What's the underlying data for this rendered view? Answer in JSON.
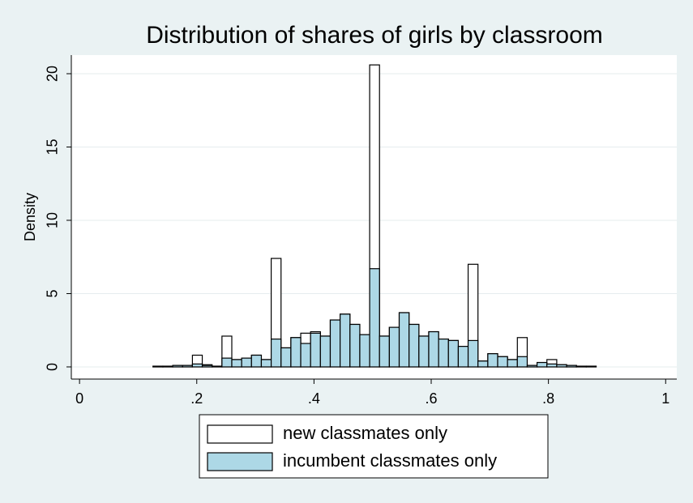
{
  "chart_data": {
    "type": "histogram",
    "title": "Distribution of shares of girls by classroom",
    "y_label": "Density",
    "bins": [
      0.075,
      0.0918,
      0.1086,
      0.1254,
      0.1422,
      0.159,
      0.1758,
      0.1926,
      0.2094,
      0.2262,
      0.243,
      0.2598,
      0.2766,
      0.2934,
      0.3102,
      0.327,
      0.3438,
      0.3606,
      0.3774,
      0.3942,
      0.411,
      0.4278,
      0.4446,
      0.4614,
      0.4782,
      0.495,
      0.5118,
      0.5286,
      0.5454,
      0.5622,
      0.579,
      0.5958,
      0.6126,
      0.6294,
      0.6462,
      0.663,
      0.6798,
      0.6966,
      0.7134,
      0.7302,
      0.747,
      0.7638,
      0.7806,
      0.7974,
      0.8142,
      0.831,
      0.8478,
      0.8646,
      0.8814,
      0.8982,
      0.915
    ],
    "series": [
      {
        "name": "new classmates only",
        "color": "#ffffff",
        "values": [
          0,
          0,
          0,
          0.05,
          0.05,
          0.1,
          0.1,
          0.8,
          0.15,
          0.05,
          2.1,
          0.5,
          0.6,
          0.8,
          0.5,
          7.4,
          1.3,
          2.0,
          2.3,
          2.4,
          2.1,
          3.2,
          3.6,
          2.9,
          2.2,
          20.6,
          2.1,
          2.7,
          3.7,
          2.9,
          2.1,
          2.4,
          1.9,
          1.8,
          1.4,
          7.0,
          0.4,
          0.9,
          0.7,
          0.5,
          2.0,
          0.1,
          0.3,
          0.5,
          0.15,
          0.1,
          0.05,
          0.05,
          0,
          0
        ]
      },
      {
        "name": "incumbent classmates only",
        "color": "#add8e6",
        "values": [
          0,
          0,
          0,
          0.05,
          0.05,
          0.1,
          0.1,
          0.2,
          0.1,
          0.05,
          0.6,
          0.5,
          0.6,
          0.8,
          0.5,
          1.9,
          1.3,
          2.0,
          1.6,
          2.3,
          2.1,
          3.2,
          3.6,
          2.9,
          2.2,
          6.7,
          2.1,
          2.7,
          3.7,
          2.9,
          2.1,
          2.4,
          1.9,
          1.8,
          1.4,
          1.8,
          0.4,
          0.9,
          0.7,
          0.5,
          0.7,
          0.1,
          0.3,
          0.2,
          0.15,
          0.1,
          0.05,
          0.05,
          0,
          0
        ]
      }
    ],
    "xlim": [
      -0.014,
      1.019
    ],
    "xticks": [
      0,
      {
        "value": 0.2,
        "label": ".2"
      },
      {
        "value": 0.4,
        "label": ".4"
      },
      {
        "value": 0.6,
        "label": ".6"
      },
      {
        "value": 0.8,
        "label": ".8"
      },
      1
    ],
    "ylim": [
      -0.83,
      21.27
    ],
    "yticks": [
      0,
      5,
      10,
      15,
      20
    ],
    "grid": true
  }
}
